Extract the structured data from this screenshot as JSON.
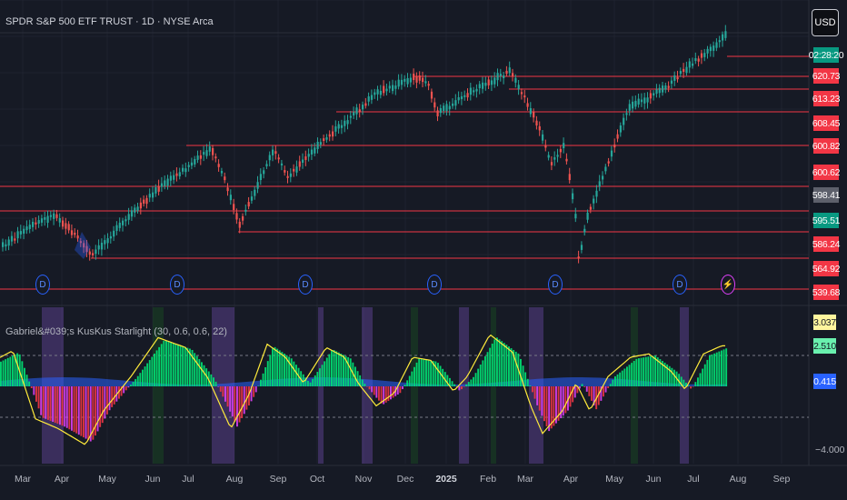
{
  "header": {
    "symbol_title": "SPDR S&P 500 ETF TRUST · 1D · NYSE Arca",
    "currency_button": "USD"
  },
  "price_axis": {
    "countdown": "02:28:20",
    "levels": [
      {
        "label": "620.73",
        "color": "#f23645"
      },
      {
        "label": "613.23",
        "color": "#f23645"
      },
      {
        "label": "608.45",
        "color": "#f23645"
      },
      {
        "label": "600.82",
        "color": "#f23645"
      },
      {
        "label": "600.62",
        "color": "#f23645"
      },
      {
        "label": "598.41",
        "color": "#5d606b"
      },
      {
        "label": "595.51",
        "color": "#089981"
      },
      {
        "label": "586.24",
        "color": "#f23645"
      },
      {
        "label": "564.92",
        "color": "#f23645"
      },
      {
        "label": "539.68",
        "color": "#f23645"
      }
    ]
  },
  "indicator": {
    "title": "Gabriel&#039;s KusKus Starlight (30, 0.6, 0.6, 22)",
    "values": [
      {
        "label": "3.037",
        "bg": "#fff59d",
        "fg": "#131722"
      },
      {
        "label": "2.510",
        "bg": "#69f0ae",
        "fg": "#131722"
      },
      {
        "label": "0.415",
        "bg": "#2962ff",
        "fg": "#ffffff"
      }
    ],
    "scale_negative": "−4.000"
  },
  "time_axis": {
    "labels": [
      {
        "text": "Mar",
        "bold": false
      },
      {
        "text": "Apr",
        "bold": false
      },
      {
        "text": "May",
        "bold": false
      },
      {
        "text": "Jun",
        "bold": false
      },
      {
        "text": "Jul",
        "bold": false
      },
      {
        "text": "Aug",
        "bold": false
      },
      {
        "text": "Sep",
        "bold": false
      },
      {
        "text": "Oct",
        "bold": false
      },
      {
        "text": "Nov",
        "bold": false
      },
      {
        "text": "Dec",
        "bold": false
      },
      {
        "text": "2025",
        "bold": true
      },
      {
        "text": "Feb",
        "bold": false
      },
      {
        "text": "Mar",
        "bold": false
      },
      {
        "text": "Apr",
        "bold": false
      },
      {
        "text": "May",
        "bold": false
      },
      {
        "text": "Jun",
        "bold": false
      },
      {
        "text": "Jul",
        "bold": false
      },
      {
        "text": "Aug",
        "bold": false
      },
      {
        "text": "Sep",
        "bold": false
      }
    ]
  },
  "event_markers": [
    {
      "glyph": "D",
      "type": "dividend"
    },
    {
      "glyph": "D",
      "type": "dividend"
    },
    {
      "glyph": "D",
      "type": "dividend"
    },
    {
      "glyph": "D",
      "type": "dividend"
    },
    {
      "glyph": "D",
      "type": "dividend"
    },
    {
      "glyph": "D",
      "type": "dividend"
    },
    {
      "glyph": "⚡",
      "type": "earnings"
    }
  ],
  "colors": {
    "background": "#161a25",
    "candle_up": "#26a69a",
    "candle_down": "#ef5350",
    "level_line": "#f23645",
    "hist_positive": "#00e676",
    "hist_negative": "#f23645",
    "hist_negative_alt": "#e040fb",
    "signal_line": "#ffeb3b",
    "baseline_area": "#2962ff"
  }
}
